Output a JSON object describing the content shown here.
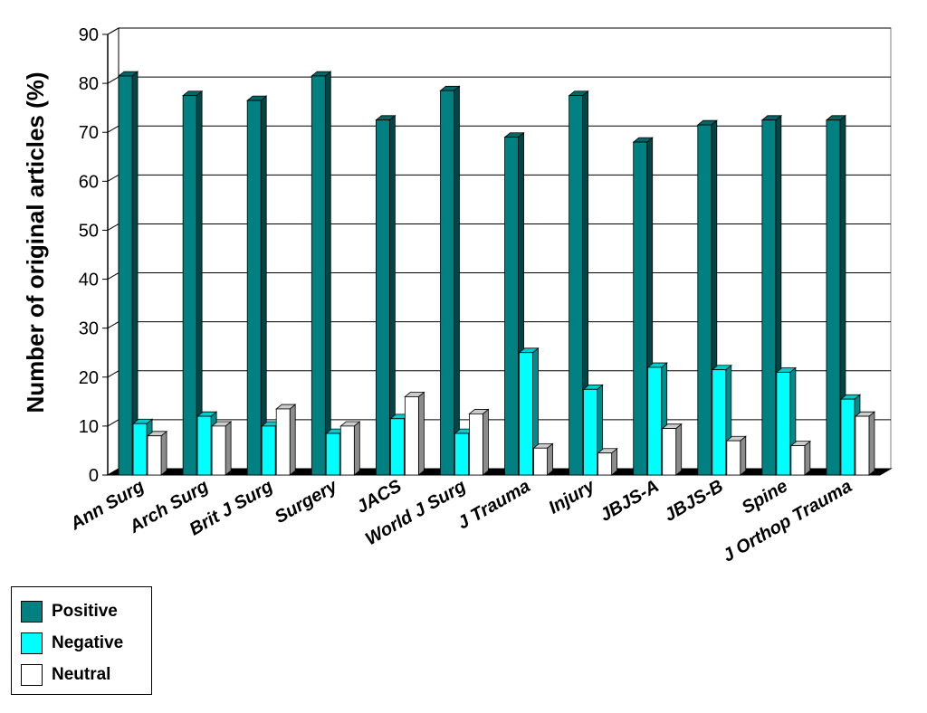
{
  "chart_data": {
    "type": "bar",
    "title": "",
    "xlabel": "",
    "ylabel": "Number of original articles (%)",
    "ylim": [
      0,
      90
    ],
    "yticks": [
      0,
      10,
      20,
      30,
      40,
      50,
      60,
      70,
      80,
      90
    ],
    "grid": true,
    "legend_position": "bottom-left",
    "categories": [
      "Ann Surg",
      "Arch Surg",
      "Brit J Surg",
      "Surgery",
      "JACS",
      "World J Surg",
      "J Trauma",
      "Injury",
      "JBJS-A",
      "JBJS-B",
      "Spine",
      "J Orthop Trauma"
    ],
    "series": [
      {
        "name": "Positive",
        "color": "#008080",
        "values": [
          81.5,
          77.5,
          76.5,
          81.5,
          72.5,
          78.5,
          69,
          77.5,
          68,
          71.5,
          72.5,
          72.5
        ]
      },
      {
        "name": "Negative",
        "color": "#00ffff",
        "values": [
          10.5,
          12,
          10,
          8.5,
          11.5,
          8.5,
          25,
          17.5,
          22,
          21.5,
          21,
          15.5
        ]
      },
      {
        "name": "Neutral",
        "color": "#ffffff",
        "values": [
          8,
          10,
          13.5,
          10,
          16,
          12.5,
          5.5,
          4.5,
          9.5,
          7,
          6,
          12
        ]
      }
    ]
  },
  "legend": {
    "items": [
      {
        "label": "Positive",
        "color": "#008080"
      },
      {
        "label": "Negative",
        "color": "#00ffff"
      },
      {
        "label": "Neutral",
        "color": "#ffffff"
      }
    ]
  }
}
